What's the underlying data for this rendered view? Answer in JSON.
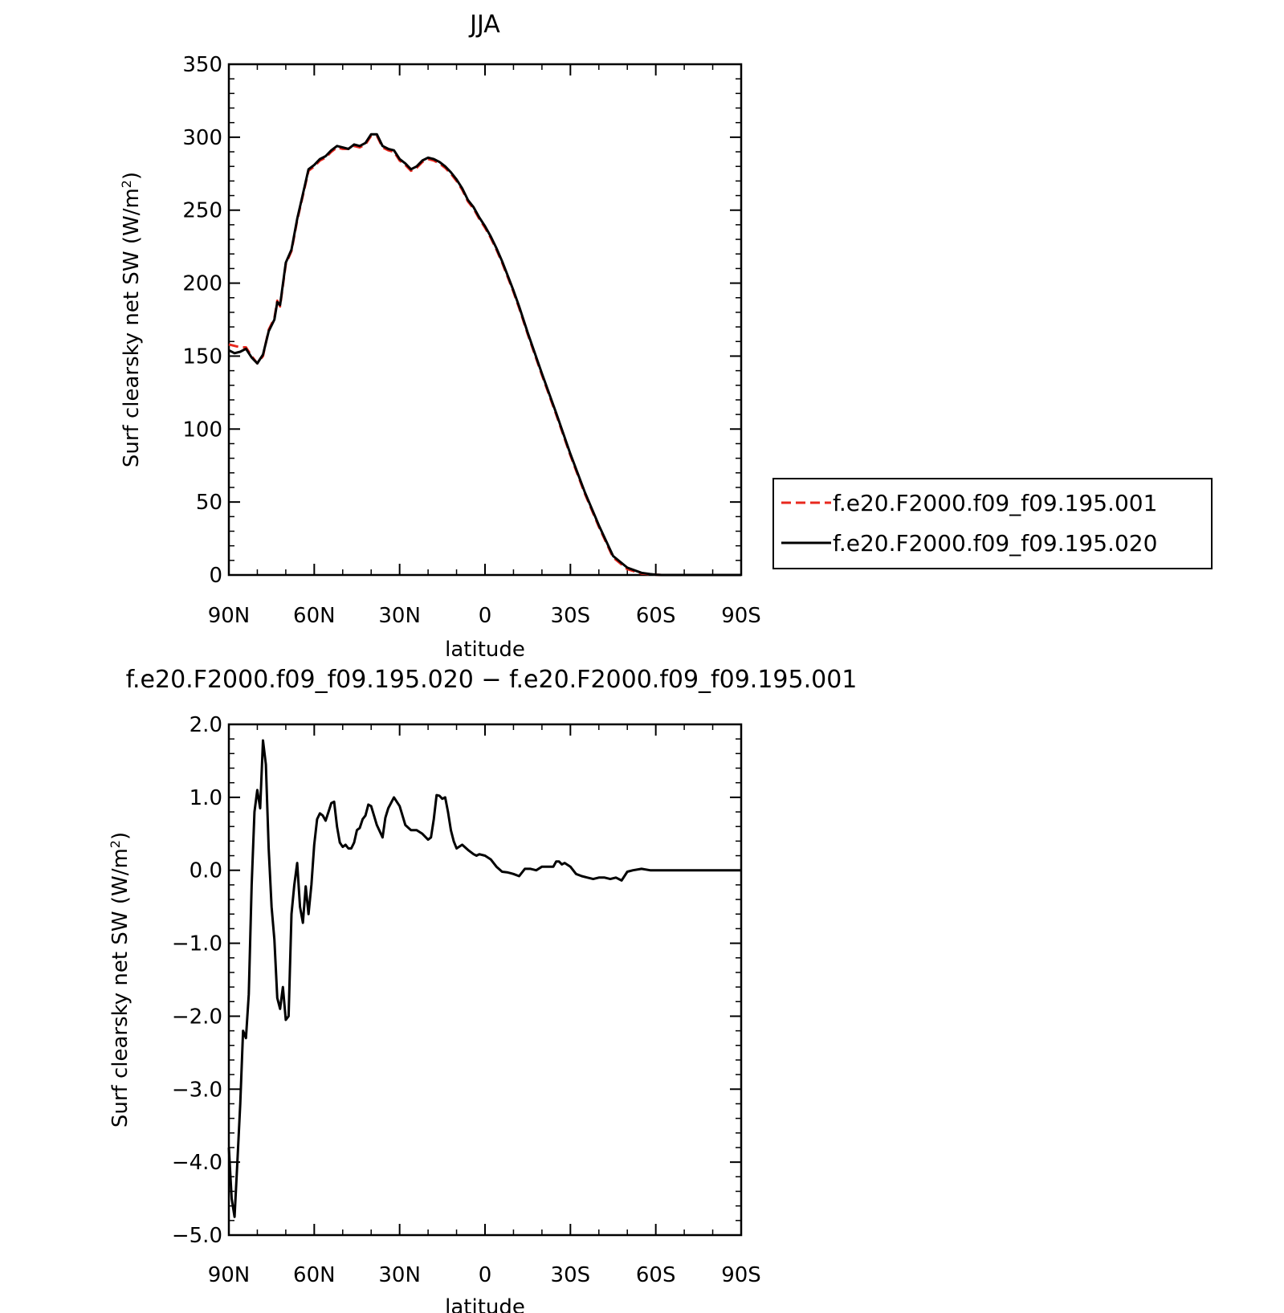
{
  "chart_data": [
    {
      "type": "line",
      "title": "JJA",
      "xlabel": "latitude",
      "ylabel_main": "Surf clearsky net SW (W/m",
      "ylabel_sup": "2",
      "ylabel_close": ")",
      "x_ticks": [
        "90N",
        "60N",
        "30N",
        "0",
        "30S",
        "60S",
        "90S"
      ],
      "y_ticks": [
        "0",
        "50",
        "100",
        "150",
        "200",
        "250",
        "300",
        "350"
      ],
      "ylim": [
        0,
        350
      ],
      "x_range_deg": [
        90,
        -90
      ],
      "legend": {
        "placement": "right",
        "entries": [
          "f.e20.F2000.f09_f09.195.001",
          "f.e20.F2000.f09_f09.195.020"
        ]
      },
      "series": [
        {
          "name": "f.e20.F2000.f09_f09.195.001",
          "color": "#e8281e",
          "style": "dashed",
          "x": [
            90,
            88,
            86,
            84,
            82,
            80,
            78,
            76,
            74,
            73,
            72,
            70,
            68,
            66,
            64,
            62,
            60,
            58,
            56,
            54,
            52,
            50,
            48,
            46,
            44,
            42,
            40,
            38,
            36,
            34,
            32,
            30,
            28,
            26,
            24,
            22,
            20,
            18,
            16,
            14,
            12,
            10,
            8,
            6,
            4,
            2,
            0,
            -2,
            -4,
            -6,
            -8,
            -10,
            -12,
            -15,
            -20,
            -25,
            -30,
            -35,
            -40,
            -45,
            -50,
            -55,
            -58,
            -60,
            -62,
            -64,
            -66,
            -68,
            -70,
            -75,
            -80,
            -85,
            -90
          ],
          "values": [
            158,
            157,
            156,
            156,
            150,
            145,
            150,
            168,
            176,
            188,
            184,
            213,
            222,
            243,
            260,
            277,
            280,
            284,
            286,
            290,
            293,
            292,
            292,
            294,
            293,
            295,
            301,
            301,
            293,
            291,
            290,
            284,
            281,
            277,
            279,
            283,
            285,
            284,
            282,
            279,
            275,
            270,
            264,
            256,
            251,
            244,
            238,
            231,
            223,
            214,
            204,
            194,
            183,
            165,
            137,
            110,
            82,
            56,
            33,
            12,
            4,
            1,
            0.5,
            0.2,
            0,
            0,
            0,
            0,
            0,
            0,
            0,
            0,
            0
          ]
        },
        {
          "name": "f.e20.F2000.f09_f09.195.020",
          "color": "#000000",
          "style": "solid",
          "x": [
            90,
            88,
            86,
            84,
            82,
            80,
            78,
            76,
            74,
            73,
            72,
            70,
            68,
            66,
            64,
            62,
            60,
            58,
            56,
            54,
            52,
            50,
            48,
            46,
            44,
            42,
            40,
            38,
            36,
            34,
            32,
            30,
            28,
            26,
            24,
            22,
            20,
            18,
            16,
            14,
            12,
            10,
            8,
            6,
            4,
            2,
            0,
            -2,
            -4,
            -6,
            -8,
            -10,
            -12,
            -15,
            -20,
            -25,
            -30,
            -35,
            -40,
            -45,
            -50,
            -55,
            -58,
            -60,
            -62,
            -64,
            -66,
            -68,
            -70,
            -75,
            -80,
            -85,
            -90
          ],
          "values": [
            154,
            152,
            153,
            155,
            149,
            145,
            151,
            167,
            175,
            187,
            185,
            214,
            223,
            244,
            261,
            278,
            281,
            285,
            287,
            291,
            294,
            293,
            292,
            295,
            294,
            296,
            302,
            302,
            294,
            292,
            291,
            285,
            282,
            278,
            280,
            284,
            286,
            285,
            283,
            280,
            276,
            271,
            265,
            257,
            252,
            245,
            239,
            232,
            224,
            215,
            205,
            195,
            184,
            166,
            138,
            111,
            83,
            57,
            34,
            13,
            5,
            1.5,
            0.6,
            0.2,
            0,
            0,
            0,
            0,
            0,
            0,
            0,
            0,
            0
          ]
        }
      ]
    },
    {
      "type": "line",
      "title": "f.e20.F2000.f09_f09.195.020 − f.e20.F2000.f09_f09.195.001",
      "xlabel": "latitude",
      "ylabel_main": "Surf clearsky net SW (W/m",
      "ylabel_sup": "2",
      "ylabel_close": ")",
      "x_ticks": [
        "90N",
        "60N",
        "30N",
        "0",
        "30S",
        "60S",
        "90S"
      ],
      "y_ticks": [
        "−5.0",
        "−4.0",
        "−3.0",
        "−2.0",
        "−1.0",
        "0.0",
        "1.0",
        "2.0"
      ],
      "ylim": [
        -5,
        2
      ],
      "x_range_deg": [
        90,
        -90
      ],
      "series": [
        {
          "color": "#000000",
          "style": "solid",
          "x": [
            90,
            89,
            88,
            87,
            86,
            85,
            84,
            83,
            82,
            81,
            80,
            79,
            78,
            77,
            76,
            75,
            74,
            73,
            72,
            71,
            70,
            69,
            68,
            67,
            66,
            65,
            64,
            63,
            62,
            61,
            60,
            59,
            58,
            57,
            56,
            55,
            54,
            53,
            52,
            51,
            50,
            49,
            48,
            47,
            46,
            45,
            44,
            43,
            42,
            41,
            40,
            38,
            36,
            35,
            34,
            32,
            30,
            28,
            26,
            24,
            22,
            20,
            19,
            18,
            17,
            16,
            15,
            14,
            13,
            12,
            11,
            10,
            8,
            6,
            4,
            3,
            2,
            0,
            -2,
            -4,
            -6,
            -8,
            -10,
            -12,
            -14,
            -16,
            -18,
            -20,
            -22,
            -24,
            -25,
            -26,
            -27,
            -28,
            -30,
            -32,
            -34,
            -36,
            -38,
            -40,
            -42,
            -44,
            -46,
            -48,
            -50,
            -52,
            -55,
            -58,
            -60,
            -62,
            -65,
            -70,
            -75,
            -80,
            -85,
            -90
          ],
          "values": [
            -3.8,
            -4.5,
            -4.75,
            -4.0,
            -3.2,
            -2.2,
            -2.3,
            -1.7,
            -0.2,
            0.8,
            1.1,
            0.85,
            1.78,
            1.45,
            0.3,
            -0.5,
            -0.95,
            -1.75,
            -1.9,
            -1.6,
            -2.05,
            -2.0,
            -0.6,
            -0.2,
            0.1,
            -0.5,
            -0.72,
            -0.22,
            -0.6,
            -0.2,
            0.35,
            0.7,
            0.78,
            0.75,
            0.68,
            0.8,
            0.92,
            0.94,
            0.6,
            0.38,
            0.32,
            0.35,
            0.3,
            0.3,
            0.38,
            0.55,
            0.58,
            0.7,
            0.75,
            0.9,
            0.88,
            0.62,
            0.45,
            0.72,
            0.85,
            1.0,
            0.88,
            0.62,
            0.55,
            0.55,
            0.5,
            0.42,
            0.45,
            0.7,
            1.03,
            1.02,
            0.98,
            1.0,
            0.8,
            0.55,
            0.4,
            0.3,
            0.35,
            0.28,
            0.22,
            0.2,
            0.22,
            0.2,
            0.15,
            0.05,
            -0.02,
            -0.03,
            -0.05,
            -0.08,
            0.02,
            0.02,
            0.0,
            0.05,
            0.05,
            0.05,
            0.12,
            0.12,
            0.08,
            0.1,
            0.05,
            -0.05,
            -0.08,
            -0.1,
            -0.12,
            -0.1,
            -0.1,
            -0.12,
            -0.1,
            -0.14,
            -0.02,
            0.0,
            0.02,
            0.0,
            0.0,
            0.0,
            0.0,
            0.0,
            0.0,
            0.0,
            0.0,
            0.0
          ]
        }
      ]
    }
  ]
}
